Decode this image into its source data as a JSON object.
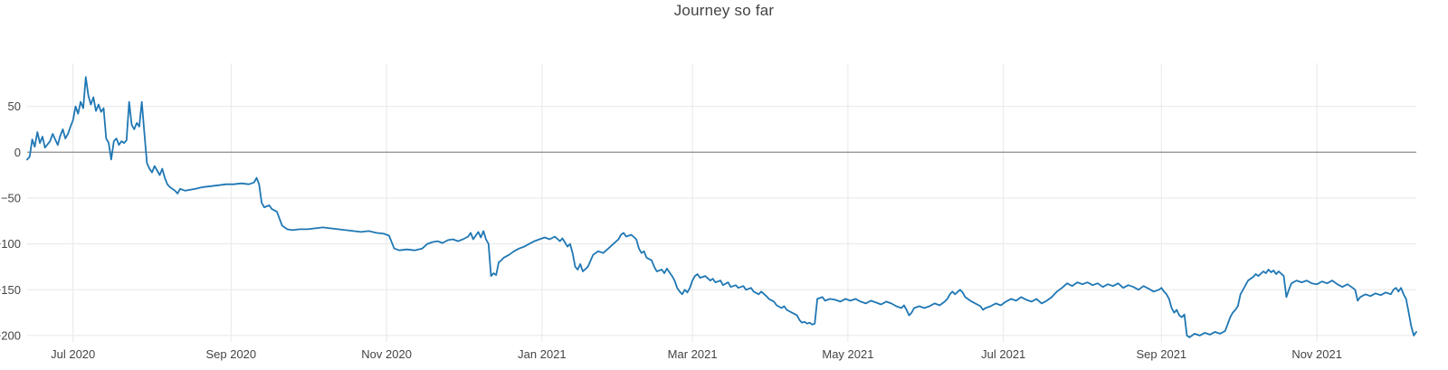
{
  "chart_data": {
    "type": "line",
    "title": "Journey so far",
    "series_name": "journey",
    "line_color": "#1f77b4",
    "line_width": 1.8,
    "grid_color": "#e8e8e8",
    "zeroline_color": "#8c8c8c",
    "text_color": "#444444",
    "background": "#ffffff",
    "grid": true,
    "legend": "none",
    "ylim": [
      -207,
      97
    ],
    "zeroline_value": 0,
    "yticks": [
      {
        "value": 50,
        "label": "50"
      },
      {
        "value": 0,
        "label": "0"
      },
      {
        "value": -50,
        "label": "−50"
      },
      {
        "value": -100,
        "label": "−100"
      },
      {
        "value": -150,
        "label": "−150"
      },
      {
        "value": -200,
        "label": "−200"
      }
    ],
    "xticks": [
      {
        "date": "2020-07-01",
        "label": "Jul 2020"
      },
      {
        "date": "2020-09-01",
        "label": "Sep 2020"
      },
      {
        "date": "2020-11-01",
        "label": "Nov 2020"
      },
      {
        "date": "2021-01-01",
        "label": "Jan 2021"
      },
      {
        "date": "2021-03-01",
        "label": "Mar 2021"
      },
      {
        "date": "2021-05-01",
        "label": "May 2021"
      },
      {
        "date": "2021-07-01",
        "label": "Jul 2021"
      },
      {
        "date": "2021-09-01",
        "label": "Sep 2021"
      },
      {
        "date": "2021-11-01",
        "label": "Nov 2021"
      }
    ],
    "points": [
      [
        "2020-06-13",
        -8
      ],
      [
        "2020-06-14",
        -5
      ],
      [
        "2020-06-15",
        14
      ],
      [
        "2020-06-16",
        6
      ],
      [
        "2020-06-17",
        22
      ],
      [
        "2020-06-18",
        10
      ],
      [
        "2020-06-19",
        17
      ],
      [
        "2020-06-20",
        5
      ],
      [
        "2020-06-22",
        12
      ],
      [
        "2020-06-23",
        20
      ],
      [
        "2020-06-24",
        14
      ],
      [
        "2020-06-25",
        8
      ],
      [
        "2020-06-26",
        18
      ],
      [
        "2020-06-27",
        25
      ],
      [
        "2020-06-28",
        15
      ],
      [
        "2020-06-29",
        20
      ],
      [
        "2020-06-30",
        28
      ],
      [
        "2020-07-01",
        35
      ],
      [
        "2020-07-02",
        50
      ],
      [
        "2020-07-03",
        42
      ],
      [
        "2020-07-04",
        55
      ],
      [
        "2020-07-05",
        48
      ],
      [
        "2020-07-06",
        82
      ],
      [
        "2020-07-07",
        62
      ],
      [
        "2020-07-08",
        52
      ],
      [
        "2020-07-09",
        60
      ],
      [
        "2020-07-10",
        45
      ],
      [
        "2020-07-11",
        52
      ],
      [
        "2020-07-12",
        44
      ],
      [
        "2020-07-13",
        48
      ],
      [
        "2020-07-14",
        15
      ],
      [
        "2020-07-15",
        10
      ],
      [
        "2020-07-16",
        -8
      ],
      [
        "2020-07-17",
        12
      ],
      [
        "2020-07-18",
        15
      ],
      [
        "2020-07-19",
        8
      ],
      [
        "2020-07-20",
        12
      ],
      [
        "2020-07-21",
        10
      ],
      [
        "2020-07-22",
        13
      ],
      [
        "2020-07-23",
        55
      ],
      [
        "2020-07-24",
        30
      ],
      [
        "2020-07-25",
        25
      ],
      [
        "2020-07-26",
        32
      ],
      [
        "2020-07-27",
        28
      ],
      [
        "2020-07-28",
        55
      ],
      [
        "2020-07-29",
        20
      ],
      [
        "2020-07-30",
        -12
      ],
      [
        "2020-07-31",
        -18
      ],
      [
        "2020-08-01",
        -22
      ],
      [
        "2020-08-02",
        -15
      ],
      [
        "2020-08-03",
        -20
      ],
      [
        "2020-08-04",
        -25
      ],
      [
        "2020-08-05",
        -18
      ],
      [
        "2020-08-06",
        -28
      ],
      [
        "2020-08-07",
        -35
      ],
      [
        "2020-08-08",
        -38
      ],
      [
        "2020-08-10",
        -42
      ],
      [
        "2020-08-11",
        -45
      ],
      [
        "2020-08-12",
        -40
      ],
      [
        "2020-08-14",
        -42
      ],
      [
        "2020-08-16",
        -41
      ],
      [
        "2020-08-18",
        -40
      ],
      [
        "2020-08-21",
        -38
      ],
      [
        "2020-08-24",
        -37
      ],
      [
        "2020-08-27",
        -36
      ],
      [
        "2020-08-30",
        -35
      ],
      [
        "2020-09-02",
        -35
      ],
      [
        "2020-09-05",
        -34
      ],
      [
        "2020-09-08",
        -35
      ],
      [
        "2020-09-10",
        -33
      ],
      [
        "2020-09-11",
        -28
      ],
      [
        "2020-09-12",
        -35
      ],
      [
        "2020-09-13",
        -55
      ],
      [
        "2020-09-14",
        -60
      ],
      [
        "2020-09-16",
        -58
      ],
      [
        "2020-09-17",
        -62
      ],
      [
        "2020-09-19",
        -65
      ],
      [
        "2020-09-21",
        -80
      ],
      [
        "2020-09-23",
        -84
      ],
      [
        "2020-09-25",
        -85
      ],
      [
        "2020-09-28",
        -84
      ],
      [
        "2020-10-01",
        -84
      ],
      [
        "2020-10-04",
        -83
      ],
      [
        "2020-10-07",
        -82
      ],
      [
        "2020-10-10",
        -83
      ],
      [
        "2020-10-13",
        -84
      ],
      [
        "2020-10-16",
        -85
      ],
      [
        "2020-10-19",
        -86
      ],
      [
        "2020-10-22",
        -87
      ],
      [
        "2020-10-25",
        -86
      ],
      [
        "2020-10-28",
        -88
      ],
      [
        "2020-10-31",
        -89
      ],
      [
        "2020-11-02",
        -91
      ],
      [
        "2020-11-04",
        -105
      ],
      [
        "2020-11-06",
        -107
      ],
      [
        "2020-11-09",
        -106
      ],
      [
        "2020-11-12",
        -107
      ],
      [
        "2020-11-15",
        -105
      ],
      [
        "2020-11-17",
        -100
      ],
      [
        "2020-11-19",
        -98
      ],
      [
        "2020-11-21",
        -97
      ],
      [
        "2020-11-23",
        -99
      ],
      [
        "2020-11-25",
        -96
      ],
      [
        "2020-11-27",
        -95
      ],
      [
        "2020-11-29",
        -97
      ],
      [
        "2020-12-01",
        -95
      ],
      [
        "2020-12-03",
        -92
      ],
      [
        "2020-12-04",
        -88
      ],
      [
        "2020-12-05",
        -95
      ],
      [
        "2020-12-07",
        -87
      ],
      [
        "2020-12-08",
        -93
      ],
      [
        "2020-12-09",
        -86
      ],
      [
        "2020-12-10",
        -95
      ],
      [
        "2020-12-11",
        -100
      ],
      [
        "2020-12-12",
        -135
      ],
      [
        "2020-12-13",
        -132
      ],
      [
        "2020-12-14",
        -134
      ],
      [
        "2020-12-15",
        -120
      ],
      [
        "2020-12-16",
        -118
      ],
      [
        "2020-12-17",
        -115
      ],
      [
        "2020-12-19",
        -112
      ],
      [
        "2020-12-21",
        -108
      ],
      [
        "2020-12-23",
        -105
      ],
      [
        "2020-12-25",
        -103
      ],
      [
        "2020-12-27",
        -100
      ],
      [
        "2020-12-29",
        -97
      ],
      [
        "2020-12-31",
        -95
      ],
      [
        "2021-01-02",
        -93
      ],
      [
        "2021-01-04",
        -95
      ],
      [
        "2021-01-06",
        -92
      ],
      [
        "2021-01-08",
        -97
      ],
      [
        "2021-01-09",
        -94
      ],
      [
        "2021-01-11",
        -103
      ],
      [
        "2021-01-12",
        -100
      ],
      [
        "2021-01-13",
        -110
      ],
      [
        "2021-01-14",
        -125
      ],
      [
        "2021-01-15",
        -128
      ],
      [
        "2021-01-16",
        -122
      ],
      [
        "2021-01-17",
        -130
      ],
      [
        "2021-01-19",
        -125
      ],
      [
        "2021-01-21",
        -112
      ],
      [
        "2021-01-23",
        -108
      ],
      [
        "2021-01-25",
        -110
      ],
      [
        "2021-01-27",
        -105
      ],
      [
        "2021-01-29",
        -100
      ],
      [
        "2021-01-31",
        -95
      ],
      [
        "2021-02-01",
        -90
      ],
      [
        "2021-02-02",
        -88
      ],
      [
        "2021-02-03",
        -92
      ],
      [
        "2021-02-05",
        -90
      ],
      [
        "2021-02-07",
        -95
      ],
      [
        "2021-02-08",
        -105
      ],
      [
        "2021-02-09",
        -110
      ],
      [
        "2021-02-10",
        -108
      ],
      [
        "2021-02-11",
        -115
      ],
      [
        "2021-02-13",
        -118
      ],
      [
        "2021-02-14",
        -125
      ],
      [
        "2021-02-15",
        -130
      ],
      [
        "2021-02-17",
        -128
      ],
      [
        "2021-02-18",
        -132
      ],
      [
        "2021-02-19",
        -127
      ],
      [
        "2021-02-21",
        -135
      ],
      [
        "2021-02-22",
        -140
      ],
      [
        "2021-02-23",
        -148
      ],
      [
        "2021-02-24",
        -152
      ],
      [
        "2021-02-25",
        -155
      ],
      [
        "2021-02-26",
        -150
      ],
      [
        "2021-02-27",
        -153
      ],
      [
        "2021-02-28",
        -148
      ],
      [
        "2021-03-01",
        -140
      ],
      [
        "2021-03-02",
        -135
      ],
      [
        "2021-03-03",
        -133
      ],
      [
        "2021-03-04",
        -137
      ],
      [
        "2021-03-06",
        -135
      ],
      [
        "2021-03-08",
        -140
      ],
      [
        "2021-03-09",
        -138
      ],
      [
        "2021-03-10",
        -142
      ],
      [
        "2021-03-12",
        -140
      ],
      [
        "2021-03-13",
        -145
      ],
      [
        "2021-03-15",
        -142
      ],
      [
        "2021-03-16",
        -147
      ],
      [
        "2021-03-18",
        -145
      ],
      [
        "2021-03-19",
        -148
      ],
      [
        "2021-03-21",
        -146
      ],
      [
        "2021-03-22",
        -150
      ],
      [
        "2021-03-24",
        -148
      ],
      [
        "2021-03-25",
        -152
      ],
      [
        "2021-03-27",
        -155
      ],
      [
        "2021-03-28",
        -152
      ],
      [
        "2021-03-30",
        -157
      ],
      [
        "2021-03-31",
        -160
      ],
      [
        "2021-04-02",
        -163
      ],
      [
        "2021-04-03",
        -167
      ],
      [
        "2021-04-05",
        -170
      ],
      [
        "2021-04-06",
        -168
      ],
      [
        "2021-04-07",
        -172
      ],
      [
        "2021-04-09",
        -175
      ],
      [
        "2021-04-11",
        -178
      ],
      [
        "2021-04-12",
        -183
      ],
      [
        "2021-04-13",
        -186
      ],
      [
        "2021-04-14",
        -185
      ],
      [
        "2021-04-15",
        -187
      ],
      [
        "2021-04-16",
        -186
      ],
      [
        "2021-04-17",
        -188
      ],
      [
        "2021-04-18",
        -187
      ],
      [
        "2021-04-19",
        -160
      ],
      [
        "2021-04-21",
        -158
      ],
      [
        "2021-04-22",
        -162
      ],
      [
        "2021-04-24",
        -160
      ],
      [
        "2021-04-26",
        -161
      ],
      [
        "2021-04-28",
        -163
      ],
      [
        "2021-04-30",
        -160
      ],
      [
        "2021-05-02",
        -162
      ],
      [
        "2021-05-04",
        -160
      ],
      [
        "2021-05-06",
        -163
      ],
      [
        "2021-05-08",
        -165
      ],
      [
        "2021-05-10",
        -162
      ],
      [
        "2021-05-12",
        -164
      ],
      [
        "2021-05-14",
        -166
      ],
      [
        "2021-05-16",
        -163
      ],
      [
        "2021-05-18",
        -165
      ],
      [
        "2021-05-20",
        -168
      ],
      [
        "2021-05-22",
        -170
      ],
      [
        "2021-05-23",
        -167
      ],
      [
        "2021-05-24",
        -172
      ],
      [
        "2021-05-25",
        -178
      ],
      [
        "2021-05-26",
        -175
      ],
      [
        "2021-05-27",
        -170
      ],
      [
        "2021-05-29",
        -168
      ],
      [
        "2021-05-31",
        -170
      ],
      [
        "2021-06-02",
        -168
      ],
      [
        "2021-06-04",
        -165
      ],
      [
        "2021-06-06",
        -167
      ],
      [
        "2021-06-08",
        -163
      ],
      [
        "2021-06-09",
        -160
      ],
      [
        "2021-06-10",
        -155
      ],
      [
        "2021-06-11",
        -152
      ],
      [
        "2021-06-12",
        -155
      ],
      [
        "2021-06-14",
        -150
      ],
      [
        "2021-06-15",
        -153
      ],
      [
        "2021-06-16",
        -158
      ],
      [
        "2021-06-18",
        -162
      ],
      [
        "2021-06-20",
        -165
      ],
      [
        "2021-06-22",
        -168
      ],
      [
        "2021-06-23",
        -172
      ],
      [
        "2021-06-24",
        -170
      ],
      [
        "2021-06-26",
        -168
      ],
      [
        "2021-06-28",
        -165
      ],
      [
        "2021-06-30",
        -167
      ],
      [
        "2021-07-02",
        -163
      ],
      [
        "2021-07-04",
        -160
      ],
      [
        "2021-07-06",
        -162
      ],
      [
        "2021-07-08",
        -158
      ],
      [
        "2021-07-10",
        -161
      ],
      [
        "2021-07-12",
        -163
      ],
      [
        "2021-07-14",
        -160
      ],
      [
        "2021-07-16",
        -165
      ],
      [
        "2021-07-18",
        -162
      ],
      [
        "2021-07-20",
        -158
      ],
      [
        "2021-07-22",
        -152
      ],
      [
        "2021-07-24",
        -148
      ],
      [
        "2021-07-26",
        -143
      ],
      [
        "2021-07-28",
        -146
      ],
      [
        "2021-07-30",
        -142
      ],
      [
        "2021-08-01",
        -144
      ],
      [
        "2021-08-03",
        -142
      ],
      [
        "2021-08-05",
        -145
      ],
      [
        "2021-08-07",
        -143
      ],
      [
        "2021-08-09",
        -147
      ],
      [
        "2021-08-11",
        -144
      ],
      [
        "2021-08-13",
        -146
      ],
      [
        "2021-08-15",
        -143
      ],
      [
        "2021-08-17",
        -148
      ],
      [
        "2021-08-19",
        -145
      ],
      [
        "2021-08-21",
        -147
      ],
      [
        "2021-08-23",
        -150
      ],
      [
        "2021-08-25",
        -146
      ],
      [
        "2021-08-27",
        -149
      ],
      [
        "2021-08-29",
        -152
      ],
      [
        "2021-08-31",
        -150
      ],
      [
        "2021-09-01",
        -148
      ],
      [
        "2021-09-02",
        -152
      ],
      [
        "2021-09-03",
        -155
      ],
      [
        "2021-09-04",
        -160
      ],
      [
        "2021-09-05",
        -170
      ],
      [
        "2021-09-06",
        -175
      ],
      [
        "2021-09-07",
        -172
      ],
      [
        "2021-09-08",
        -178
      ],
      [
        "2021-09-09",
        -180
      ],
      [
        "2021-09-10",
        -177
      ],
      [
        "2021-09-11",
        -200
      ],
      [
        "2021-09-12",
        -202
      ],
      [
        "2021-09-14",
        -198
      ],
      [
        "2021-09-16",
        -200
      ],
      [
        "2021-09-18",
        -197
      ],
      [
        "2021-09-20",
        -199
      ],
      [
        "2021-09-22",
        -196
      ],
      [
        "2021-09-24",
        -198
      ],
      [
        "2021-09-26",
        -195
      ],
      [
        "2021-09-28",
        -180
      ],
      [
        "2021-09-29",
        -175
      ],
      [
        "2021-09-30",
        -172
      ],
      [
        "2021-10-01",
        -168
      ],
      [
        "2021-10-02",
        -155
      ],
      [
        "2021-10-03",
        -150
      ],
      [
        "2021-10-04",
        -145
      ],
      [
        "2021-10-05",
        -140
      ],
      [
        "2021-10-07",
        -136
      ],
      [
        "2021-10-08",
        -133
      ],
      [
        "2021-10-09",
        -135
      ],
      [
        "2021-10-11",
        -130
      ],
      [
        "2021-10-12",
        -132
      ],
      [
        "2021-10-13",
        -128
      ],
      [
        "2021-10-14",
        -131
      ],
      [
        "2021-10-15",
        -129
      ],
      [
        "2021-10-16",
        -133
      ],
      [
        "2021-10-17",
        -130
      ],
      [
        "2021-10-19",
        -135
      ],
      [
        "2021-10-20",
        -158
      ],
      [
        "2021-10-21",
        -150
      ],
      [
        "2021-10-22",
        -143
      ],
      [
        "2021-10-24",
        -140
      ],
      [
        "2021-10-26",
        -142
      ],
      [
        "2021-10-28",
        -140
      ],
      [
        "2021-10-30",
        -143
      ],
      [
        "2021-11-01",
        -144
      ],
      [
        "2021-11-03",
        -141
      ],
      [
        "2021-11-05",
        -143
      ],
      [
        "2021-11-07",
        -140
      ],
      [
        "2021-11-09",
        -144
      ],
      [
        "2021-11-11",
        -147
      ],
      [
        "2021-11-13",
        -144
      ],
      [
        "2021-11-15",
        -148
      ],
      [
        "2021-11-16",
        -150
      ],
      [
        "2021-11-17",
        -162
      ],
      [
        "2021-11-18",
        -158
      ],
      [
        "2021-11-20",
        -155
      ],
      [
        "2021-11-22",
        -157
      ],
      [
        "2021-11-24",
        -154
      ],
      [
        "2021-11-26",
        -156
      ],
      [
        "2021-11-28",
        -153
      ],
      [
        "2021-11-30",
        -155
      ],
      [
        "2021-12-01",
        -150
      ],
      [
        "2021-12-02",
        -148
      ],
      [
        "2021-12-03",
        -152
      ],
      [
        "2021-12-04",
        -148
      ],
      [
        "2021-12-05",
        -155
      ],
      [
        "2021-12-06",
        -160
      ],
      [
        "2021-12-07",
        -175
      ],
      [
        "2021-12-08",
        -190
      ],
      [
        "2021-12-09",
        -200
      ],
      [
        "2021-12-10",
        -196
      ]
    ]
  }
}
